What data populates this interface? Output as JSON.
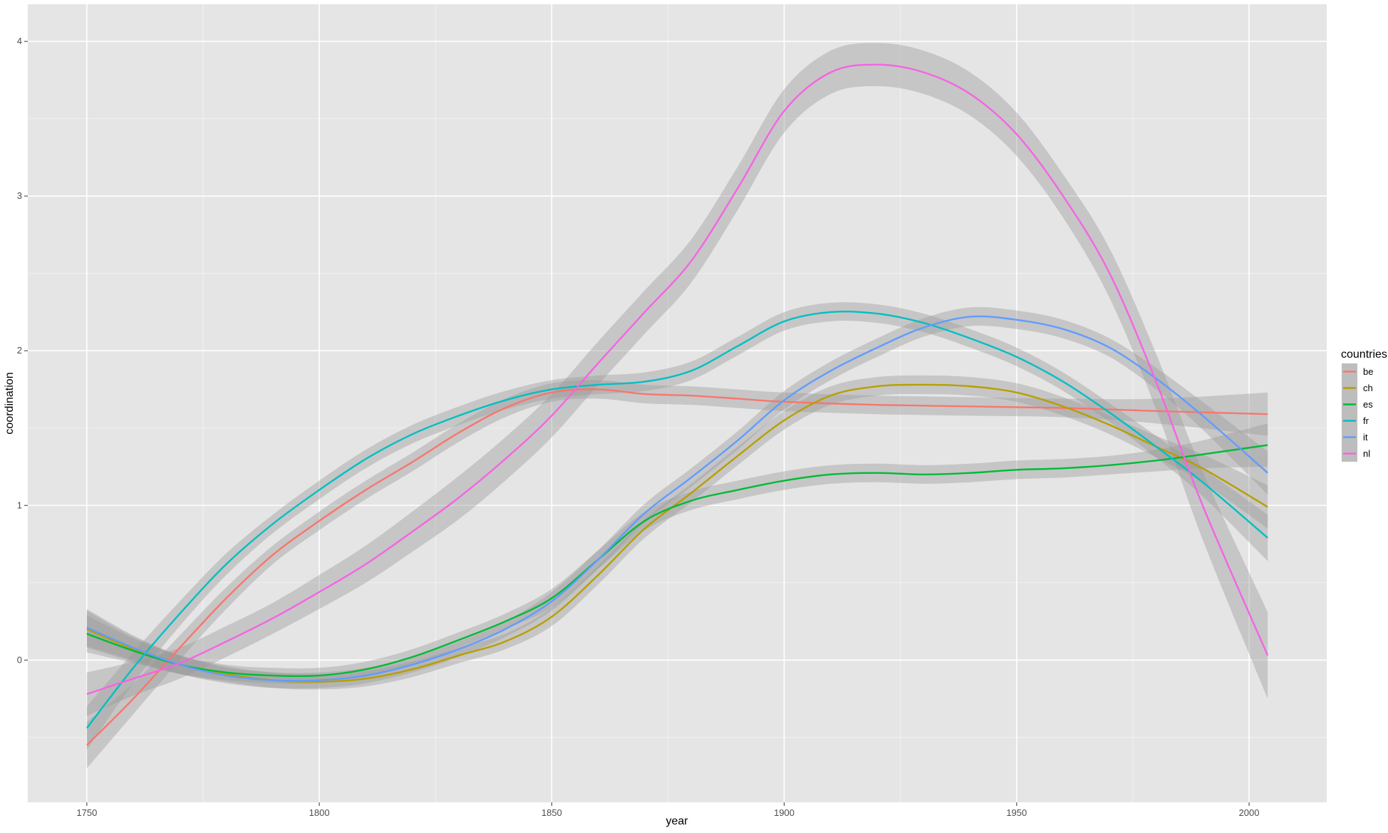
{
  "chart_data": {
    "type": "line",
    "title": "",
    "xlabel": "year",
    "ylabel": "coordination",
    "xlim": [
      1737.3,
      2016.7
    ],
    "ylim": [
      -0.92,
      4.24
    ],
    "x_ticks": [
      1750,
      1800,
      1850,
      1900,
      1950,
      2000
    ],
    "y_ticks": [
      0,
      1,
      2,
      3,
      4
    ],
    "grid": true,
    "background": "#e5e5e5",
    "gridline_color": "#ffffff",
    "ribbon_color": "#999999",
    "legend": {
      "title": "countries",
      "position": "right"
    },
    "series": [
      {
        "name": "be",
        "color": "#f8766d",
        "points": [
          [
            1750,
            -0.55
          ],
          [
            1760,
            -0.25
          ],
          [
            1770,
            0.08
          ],
          [
            1780,
            0.4
          ],
          [
            1790,
            0.68
          ],
          [
            1800,
            0.9
          ],
          [
            1810,
            1.1
          ],
          [
            1820,
            1.28
          ],
          [
            1830,
            1.47
          ],
          [
            1840,
            1.63
          ],
          [
            1850,
            1.73
          ],
          [
            1860,
            1.75
          ],
          [
            1870,
            1.72
          ],
          [
            1880,
            1.71
          ],
          [
            1890,
            1.69
          ],
          [
            1900,
            1.67
          ],
          [
            1920,
            1.65
          ],
          [
            1940,
            1.64
          ],
          [
            1960,
            1.63
          ],
          [
            1980,
            1.61
          ],
          [
            2004,
            1.59
          ]
        ],
        "ribbon": [
          0.15,
          0.1,
          0.08,
          0.07,
          0.06,
          0.06,
          0.06,
          0.06,
          0.06,
          0.06,
          0.06,
          0.06,
          0.06,
          0.06,
          0.06,
          0.06,
          0.06,
          0.06,
          0.06,
          0.08,
          0.14
        ]
      },
      {
        "name": "ch",
        "color": "#b79f00",
        "points": [
          [
            1750,
            0.2
          ],
          [
            1760,
            0.07
          ],
          [
            1770,
            -0.03
          ],
          [
            1780,
            -0.09
          ],
          [
            1790,
            -0.13
          ],
          [
            1800,
            -0.14
          ],
          [
            1810,
            -0.12
          ],
          [
            1820,
            -0.06
          ],
          [
            1830,
            0.03
          ],
          [
            1840,
            0.12
          ],
          [
            1850,
            0.28
          ],
          [
            1860,
            0.55
          ],
          [
            1870,
            0.85
          ],
          [
            1880,
            1.08
          ],
          [
            1890,
            1.32
          ],
          [
            1900,
            1.55
          ],
          [
            1910,
            1.71
          ],
          [
            1920,
            1.77
          ],
          [
            1930,
            1.78
          ],
          [
            1940,
            1.77
          ],
          [
            1950,
            1.73
          ],
          [
            1960,
            1.64
          ],
          [
            1970,
            1.52
          ],
          [
            1980,
            1.38
          ],
          [
            1990,
            1.24
          ],
          [
            2004,
            0.99
          ]
        ],
        "ribbon": [
          0.12,
          0.08,
          0.06,
          0.05,
          0.05,
          0.05,
          0.05,
          0.05,
          0.05,
          0.05,
          0.06,
          0.06,
          0.06,
          0.06,
          0.06,
          0.06,
          0.06,
          0.06,
          0.06,
          0.06,
          0.06,
          0.06,
          0.06,
          0.07,
          0.09,
          0.14
        ]
      },
      {
        "name": "es",
        "color": "#00ba38",
        "points": [
          [
            1750,
            0.17
          ],
          [
            1760,
            0.06
          ],
          [
            1770,
            -0.03
          ],
          [
            1780,
            -0.08
          ],
          [
            1790,
            -0.1
          ],
          [
            1800,
            -0.1
          ],
          [
            1810,
            -0.06
          ],
          [
            1820,
            0.02
          ],
          [
            1830,
            0.13
          ],
          [
            1840,
            0.25
          ],
          [
            1850,
            0.4
          ],
          [
            1860,
            0.65
          ],
          [
            1870,
            0.9
          ],
          [
            1880,
            1.03
          ],
          [
            1890,
            1.1
          ],
          [
            1900,
            1.16
          ],
          [
            1910,
            1.2
          ],
          [
            1920,
            1.21
          ],
          [
            1930,
            1.2
          ],
          [
            1940,
            1.21
          ],
          [
            1950,
            1.23
          ],
          [
            1960,
            1.24
          ],
          [
            1970,
            1.26
          ],
          [
            1980,
            1.29
          ],
          [
            1990,
            1.33
          ],
          [
            2004,
            1.39
          ]
        ],
        "ribbon": [
          0.12,
          0.08,
          0.06,
          0.05,
          0.05,
          0.05,
          0.05,
          0.05,
          0.05,
          0.05,
          0.06,
          0.06,
          0.06,
          0.06,
          0.06,
          0.06,
          0.06,
          0.06,
          0.06,
          0.06,
          0.06,
          0.06,
          0.06,
          0.07,
          0.09,
          0.14
        ]
      },
      {
        "name": "fr",
        "color": "#00bfc4",
        "points": [
          [
            1750,
            -0.44
          ],
          [
            1760,
            -0.05
          ],
          [
            1770,
            0.3
          ],
          [
            1780,
            0.62
          ],
          [
            1790,
            0.88
          ],
          [
            1800,
            1.1
          ],
          [
            1810,
            1.3
          ],
          [
            1820,
            1.46
          ],
          [
            1830,
            1.58
          ],
          [
            1840,
            1.68
          ],
          [
            1850,
            1.75
          ],
          [
            1860,
            1.78
          ],
          [
            1870,
            1.8
          ],
          [
            1880,
            1.87
          ],
          [
            1890,
            2.03
          ],
          [
            1900,
            2.19
          ],
          [
            1910,
            2.25
          ],
          [
            1920,
            2.24
          ],
          [
            1930,
            2.18
          ],
          [
            1940,
            2.08
          ],
          [
            1950,
            1.96
          ],
          [
            1960,
            1.8
          ],
          [
            1970,
            1.6
          ],
          [
            1980,
            1.38
          ],
          [
            1990,
            1.15
          ],
          [
            2004,
            0.79
          ]
        ],
        "ribbon": [
          0.14,
          0.1,
          0.08,
          0.07,
          0.06,
          0.06,
          0.06,
          0.06,
          0.06,
          0.06,
          0.06,
          0.06,
          0.06,
          0.06,
          0.06,
          0.06,
          0.06,
          0.06,
          0.06,
          0.06,
          0.06,
          0.06,
          0.06,
          0.07,
          0.09,
          0.15
        ]
      },
      {
        "name": "it",
        "color": "#619cff",
        "points": [
          [
            1750,
            0.21
          ],
          [
            1760,
            0.08
          ],
          [
            1770,
            -0.03
          ],
          [
            1780,
            -0.1
          ],
          [
            1790,
            -0.13
          ],
          [
            1800,
            -0.13
          ],
          [
            1810,
            -0.1
          ],
          [
            1820,
            -0.03
          ],
          [
            1830,
            0.07
          ],
          [
            1840,
            0.2
          ],
          [
            1850,
            0.38
          ],
          [
            1860,
            0.65
          ],
          [
            1870,
            0.95
          ],
          [
            1880,
            1.18
          ],
          [
            1890,
            1.42
          ],
          [
            1900,
            1.68
          ],
          [
            1910,
            1.87
          ],
          [
            1920,
            2.02
          ],
          [
            1930,
            2.15
          ],
          [
            1940,
            2.22
          ],
          [
            1950,
            2.2
          ],
          [
            1960,
            2.14
          ],
          [
            1970,
            2.02
          ],
          [
            1980,
            1.82
          ],
          [
            1990,
            1.58
          ],
          [
            2004,
            1.21
          ]
        ],
        "ribbon": [
          0.12,
          0.08,
          0.06,
          0.05,
          0.05,
          0.05,
          0.05,
          0.05,
          0.05,
          0.05,
          0.06,
          0.06,
          0.06,
          0.06,
          0.06,
          0.06,
          0.06,
          0.06,
          0.06,
          0.06,
          0.06,
          0.06,
          0.06,
          0.07,
          0.09,
          0.14
        ]
      },
      {
        "name": "nl",
        "color": "#f564e3",
        "points": [
          [
            1750,
            -0.22
          ],
          [
            1760,
            -0.12
          ],
          [
            1770,
            -0.02
          ],
          [
            1780,
            0.12
          ],
          [
            1790,
            0.27
          ],
          [
            1800,
            0.44
          ],
          [
            1810,
            0.62
          ],
          [
            1820,
            0.83
          ],
          [
            1830,
            1.05
          ],
          [
            1840,
            1.3
          ],
          [
            1850,
            1.58
          ],
          [
            1860,
            1.92
          ],
          [
            1870,
            2.25
          ],
          [
            1880,
            2.58
          ],
          [
            1890,
            3.05
          ],
          [
            1900,
            3.55
          ],
          [
            1910,
            3.8
          ],
          [
            1920,
            3.85
          ],
          [
            1930,
            3.8
          ],
          [
            1940,
            3.66
          ],
          [
            1950,
            3.4
          ],
          [
            1960,
            3.0
          ],
          [
            1970,
            2.5
          ],
          [
            1980,
            1.8
          ],
          [
            1990,
            1.0
          ],
          [
            2004,
            0.03
          ]
        ],
        "ribbon": [
          0.14,
          0.11,
          0.1,
          0.1,
          0.1,
          0.11,
          0.12,
          0.13,
          0.14,
          0.14,
          0.14,
          0.14,
          0.14,
          0.14,
          0.14,
          0.14,
          0.14,
          0.14,
          0.14,
          0.14,
          0.14,
          0.14,
          0.16,
          0.18,
          0.22,
          0.28
        ]
      }
    ]
  }
}
